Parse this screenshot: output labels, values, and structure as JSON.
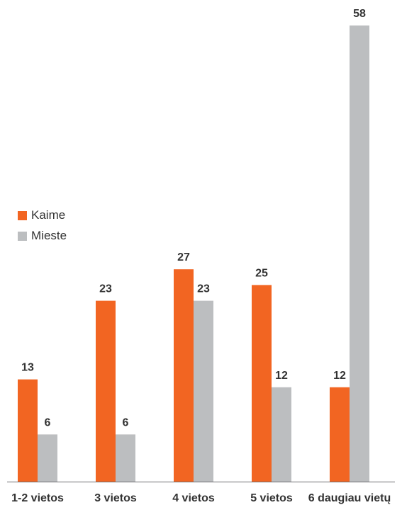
{
  "chart_data": {
    "type": "bar",
    "categories": [
      "1-2 vietos",
      "3 vietos",
      "4 vietos",
      "5 vietos",
      "6 daugiau vietų"
    ],
    "series": [
      {
        "name": "Kaime",
        "values": [
          13,
          23,
          27,
          25,
          12
        ],
        "color": "#f26522"
      },
      {
        "name": "Mieste",
        "values": [
          6,
          6,
          23,
          12,
          58
        ],
        "color": "#bcbec0"
      }
    ],
    "ylim": [
      0,
      58
    ],
    "grid": false,
    "legend_position": "left-middle"
  }
}
